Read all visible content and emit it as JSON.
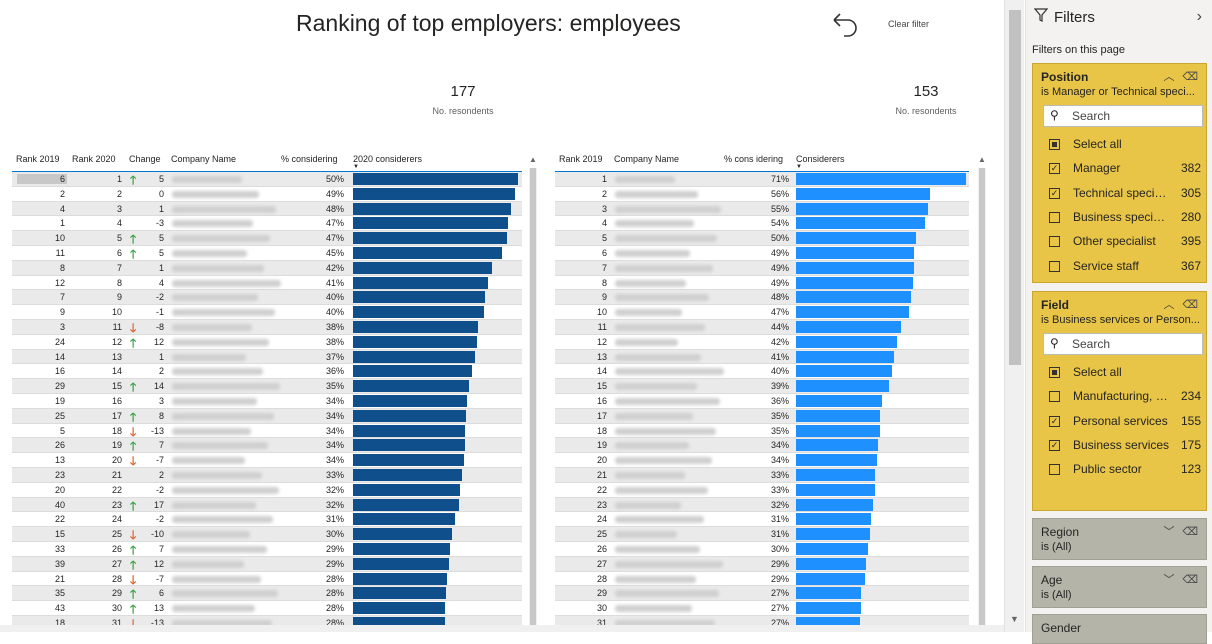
{
  "report": {
    "title": "Ranking of top employers: employees",
    "clear_filter": "Clear filter",
    "kpi1": {
      "value": "177",
      "label": "No. resondents"
    },
    "kpi2": {
      "value": "153",
      "label": "No. resondents"
    }
  },
  "table1": {
    "headers": {
      "rank2019": "Rank 2019",
      "rank2020": "Rank 2020",
      "change": "Change",
      "company": "Company Name",
      "pct": "% considering",
      "bar": "2020 considerers"
    },
    "rows": [
      {
        "r19": "6",
        "r20": "1",
        "dir": "up",
        "chg": "5",
        "pct": "50%",
        "v": 50
      },
      {
        "r19": "2",
        "r20": "2",
        "dir": "",
        "chg": "0",
        "pct": "49%",
        "v": 49
      },
      {
        "r19": "4",
        "r20": "3",
        "dir": "",
        "chg": "1",
        "pct": "48%",
        "v": 48
      },
      {
        "r19": "1",
        "r20": "4",
        "dir": "",
        "chg": "-3",
        "pct": "47%",
        "v": 47
      },
      {
        "r19": "10",
        "r20": "5",
        "dir": "up",
        "chg": "5",
        "pct": "47%",
        "v": 46.6
      },
      {
        "r19": "11",
        "r20": "6",
        "dir": "up",
        "chg": "5",
        "pct": "45%",
        "v": 45
      },
      {
        "r19": "8",
        "r20": "7",
        "dir": "",
        "chg": "1",
        "pct": "42%",
        "v": 42
      },
      {
        "r19": "12",
        "r20": "8",
        "dir": "",
        "chg": "4",
        "pct": "41%",
        "v": 41
      },
      {
        "r19": "7",
        "r20": "9",
        "dir": "",
        "chg": "-2",
        "pct": "40%",
        "v": 40
      },
      {
        "r19": "9",
        "r20": "10",
        "dir": "",
        "chg": "-1",
        "pct": "40%",
        "v": 39.6
      },
      {
        "r19": "3",
        "r20": "11",
        "dir": "down",
        "chg": "-8",
        "pct": "38%",
        "v": 38
      },
      {
        "r19": "24",
        "r20": "12",
        "dir": "up",
        "chg": "12",
        "pct": "38%",
        "v": 37.6
      },
      {
        "r19": "14",
        "r20": "13",
        "dir": "",
        "chg": "1",
        "pct": "37%",
        "v": 37
      },
      {
        "r19": "16",
        "r20": "14",
        "dir": "",
        "chg": "2",
        "pct": "36%",
        "v": 36
      },
      {
        "r19": "29",
        "r20": "15",
        "dir": "up",
        "chg": "14",
        "pct": "35%",
        "v": 35
      },
      {
        "r19": "19",
        "r20": "16",
        "dir": "",
        "chg": "3",
        "pct": "34%",
        "v": 34.4
      },
      {
        "r19": "25",
        "r20": "17",
        "dir": "up",
        "chg": "8",
        "pct": "34%",
        "v": 34.2
      },
      {
        "r19": "5",
        "r20": "18",
        "dir": "down",
        "chg": "-13",
        "pct": "34%",
        "v": 34
      },
      {
        "r19": "26",
        "r20": "19",
        "dir": "up",
        "chg": "7",
        "pct": "34%",
        "v": 33.8
      },
      {
        "r19": "13",
        "r20": "20",
        "dir": "down",
        "chg": "-7",
        "pct": "34%",
        "v": 33.6
      },
      {
        "r19": "23",
        "r20": "21",
        "dir": "",
        "chg": "2",
        "pct": "33%",
        "v": 33
      },
      {
        "r19": "20",
        "r20": "22",
        "dir": "",
        "chg": "-2",
        "pct": "32%",
        "v": 32.4
      },
      {
        "r19": "40",
        "r20": "23",
        "dir": "up",
        "chg": "17",
        "pct": "32%",
        "v": 32
      },
      {
        "r19": "22",
        "r20": "24",
        "dir": "",
        "chg": "-2",
        "pct": "31%",
        "v": 31
      },
      {
        "r19": "15",
        "r20": "25",
        "dir": "down",
        "chg": "-10",
        "pct": "30%",
        "v": 30
      },
      {
        "r19": "33",
        "r20": "26",
        "dir": "up",
        "chg": "7",
        "pct": "29%",
        "v": 29.4
      },
      {
        "r19": "39",
        "r20": "27",
        "dir": "up",
        "chg": "12",
        "pct": "29%",
        "v": 29
      },
      {
        "r19": "21",
        "r20": "28",
        "dir": "down",
        "chg": "-7",
        "pct": "28%",
        "v": 28.4
      },
      {
        "r19": "35",
        "r20": "29",
        "dir": "up",
        "chg": "6",
        "pct": "28%",
        "v": 28.2
      },
      {
        "r19": "43",
        "r20": "30",
        "dir": "up",
        "chg": "13",
        "pct": "28%",
        "v": 28
      },
      {
        "r19": "18",
        "r20": "31",
        "dir": "down",
        "chg": "-13",
        "pct": "28%",
        "v": 27.8
      }
    ]
  },
  "table2": {
    "headers": {
      "rank2019": "Rank 2019",
      "company": "Company Name",
      "pct": "% cons idering",
      "bar": "Considerers"
    },
    "rows": [
      {
        "r19": "1",
        "pct": "71%",
        "v": 71
      },
      {
        "r19": "2",
        "pct": "56%",
        "v": 56
      },
      {
        "r19": "3",
        "pct": "55%",
        "v": 55
      },
      {
        "r19": "4",
        "pct": "54%",
        "v": 54
      },
      {
        "r19": "5",
        "pct": "50%",
        "v": 50
      },
      {
        "r19": "6",
        "pct": "49%",
        "v": 49.4
      },
      {
        "r19": "7",
        "pct": "49%",
        "v": 49.2
      },
      {
        "r19": "8",
        "pct": "49%",
        "v": 49
      },
      {
        "r19": "9",
        "pct": "48%",
        "v": 48
      },
      {
        "r19": "10",
        "pct": "47%",
        "v": 47
      },
      {
        "r19": "11",
        "pct": "44%",
        "v": 44
      },
      {
        "r19": "12",
        "pct": "42%",
        "v": 42
      },
      {
        "r19": "13",
        "pct": "41%",
        "v": 41
      },
      {
        "r19": "14",
        "pct": "40%",
        "v": 40
      },
      {
        "r19": "15",
        "pct": "39%",
        "v": 39
      },
      {
        "r19": "16",
        "pct": "36%",
        "v": 36
      },
      {
        "r19": "17",
        "pct": "35%",
        "v": 35.2
      },
      {
        "r19": "18",
        "pct": "35%",
        "v": 35
      },
      {
        "r19": "19",
        "pct": "34%",
        "v": 34.2
      },
      {
        "r19": "20",
        "pct": "34%",
        "v": 34
      },
      {
        "r19": "21",
        "pct": "33%",
        "v": 33.2
      },
      {
        "r19": "22",
        "pct": "33%",
        "v": 33
      },
      {
        "r19": "23",
        "pct": "32%",
        "v": 32
      },
      {
        "r19": "24",
        "pct": "31%",
        "v": 31.2
      },
      {
        "r19": "25",
        "pct": "31%",
        "v": 31
      },
      {
        "r19": "26",
        "pct": "30%",
        "v": 30
      },
      {
        "r19": "27",
        "pct": "29%",
        "v": 29.2
      },
      {
        "r19": "28",
        "pct": "29%",
        "v": 29
      },
      {
        "r19": "29",
        "pct": "27%",
        "v": 27.2
      },
      {
        "r19": "30",
        "pct": "27%",
        "v": 27
      },
      {
        "r19": "31",
        "pct": "27%",
        "v": 26.8
      }
    ]
  },
  "colors": {
    "bar1": "#0e4f8c",
    "bar2": "#1e90ff",
    "filter_active": "#e8c547",
    "filter_inactive": "#b4b4a8"
  },
  "filters": {
    "title": "Filters",
    "subtitle": "Filters on this page",
    "position": {
      "title": "Position",
      "desc": "is Manager or Technical speci...",
      "search": "Search",
      "options": [
        {
          "label": "Select all",
          "count": "",
          "state": "partial"
        },
        {
          "label": "Manager",
          "count": "382",
          "state": "checked"
        },
        {
          "label": "Technical specialist",
          "count": "305",
          "state": "checked"
        },
        {
          "label": "Business specialist",
          "count": "280",
          "state": "unchecked"
        },
        {
          "label": "Other specialist",
          "count": "395",
          "state": "unchecked"
        },
        {
          "label": "Service staff",
          "count": "367",
          "state": "unchecked"
        }
      ]
    },
    "field": {
      "title": "Field",
      "desc": "is Business services or Person...",
      "search": "Search",
      "options": [
        {
          "label": "Select all",
          "count": "",
          "state": "partial"
        },
        {
          "label": "Manufacturing, c...",
          "count": "234",
          "state": "unchecked"
        },
        {
          "label": "Personal services",
          "count": "155",
          "state": "checked"
        },
        {
          "label": "Business services",
          "count": "175",
          "state": "checked"
        },
        {
          "label": "Public sector",
          "count": "123",
          "state": "unchecked"
        }
      ]
    },
    "region": {
      "title": "Region",
      "desc": "is (All)"
    },
    "age": {
      "title": "Age",
      "desc": "is (All)"
    },
    "gender": {
      "title": "Gender"
    }
  }
}
